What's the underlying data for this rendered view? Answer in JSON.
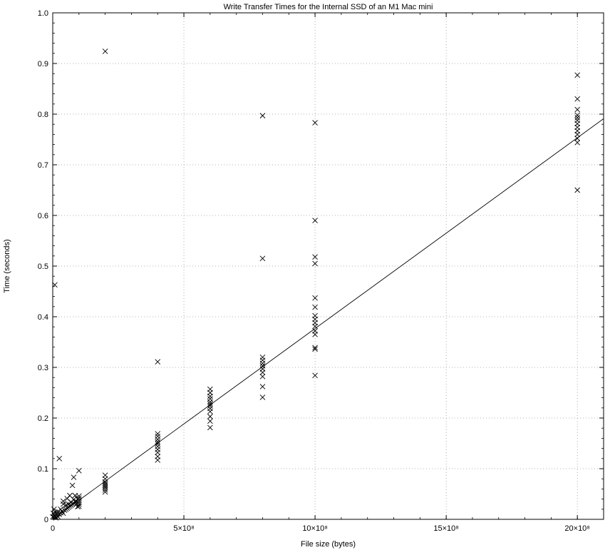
{
  "chart_data": {
    "type": "scatter",
    "title": "Write Transfer Times for the Internal SSD of an M1 Mac mini",
    "xlabel": "File size (bytes)",
    "ylabel": "Time (seconds)",
    "xlim": [
      0,
      2100000000
    ],
    "ylim": [
      0,
      1.0
    ],
    "grid": true,
    "x_ticks": [
      {
        "value": 0,
        "label": "0"
      },
      {
        "value": 500000000,
        "label": "5×10⁸"
      },
      {
        "value": 1000000000,
        "label": "10×10⁸"
      },
      {
        "value": 1500000000,
        "label": "15×10⁸"
      },
      {
        "value": 2000000000,
        "label": "20×10⁸"
      }
    ],
    "y_ticks": [
      {
        "value": 0,
        "label": "0"
      },
      {
        "value": 0.1,
        "label": "0.1"
      },
      {
        "value": 0.2,
        "label": "0.2"
      },
      {
        "value": 0.3,
        "label": "0.3"
      },
      {
        "value": 0.4,
        "label": "0.4"
      },
      {
        "value": 0.5,
        "label": "0.5"
      },
      {
        "value": 0.6,
        "label": "0.6"
      },
      {
        "value": 0.7,
        "label": "0.7"
      },
      {
        "value": 0.8,
        "label": "0.8"
      },
      {
        "value": 0.9,
        "label": "0.9"
      },
      {
        "value": 1.0,
        "label": "1.0"
      }
    ],
    "marker": "x",
    "points": [
      {
        "x": 0,
        "y": 0.005
      },
      {
        "x": 2000000,
        "y": 0.012
      },
      {
        "x": 4000000,
        "y": 0.004
      },
      {
        "x": 5000000,
        "y": 0.02
      },
      {
        "x": 6000000,
        "y": 0.008
      },
      {
        "x": 8000000,
        "y": 0.463
      },
      {
        "x": 10000000,
        "y": 0.006
      },
      {
        "x": 10000000,
        "y": 0.014
      },
      {
        "x": 12000000,
        "y": 0.003
      },
      {
        "x": 15000000,
        "y": 0.009
      },
      {
        "x": 18000000,
        "y": 0.011
      },
      {
        "x": 20000000,
        "y": 0.005
      },
      {
        "x": 20000000,
        "y": 0.015
      },
      {
        "x": 25000000,
        "y": 0.12
      },
      {
        "x": 25000000,
        "y": 0.01
      },
      {
        "x": 30000000,
        "y": 0.013
      },
      {
        "x": 30000000,
        "y": 0.02
      },
      {
        "x": 35000000,
        "y": 0.016
      },
      {
        "x": 40000000,
        "y": 0.012
      },
      {
        "x": 40000000,
        "y": 0.03
      },
      {
        "x": 40000000,
        "y": 0.036
      },
      {
        "x": 45000000,
        "y": 0.018
      },
      {
        "x": 50000000,
        "y": 0.02
      },
      {
        "x": 50000000,
        "y": 0.028
      },
      {
        "x": 55000000,
        "y": 0.022
      },
      {
        "x": 55000000,
        "y": 0.041
      },
      {
        "x": 60000000,
        "y": 0.024
      },
      {
        "x": 60000000,
        "y": 0.03
      },
      {
        "x": 65000000,
        "y": 0.026
      },
      {
        "x": 65000000,
        "y": 0.047
      },
      {
        "x": 70000000,
        "y": 0.028
      },
      {
        "x": 70000000,
        "y": 0.034
      },
      {
        "x": 75000000,
        "y": 0.03
      },
      {
        "x": 75000000,
        "y": 0.067
      },
      {
        "x": 80000000,
        "y": 0.032
      },
      {
        "x": 80000000,
        "y": 0.039
      },
      {
        "x": 80000000,
        "y": 0.083
      },
      {
        "x": 85000000,
        "y": 0.035
      },
      {
        "x": 85000000,
        "y": 0.047
      },
      {
        "x": 90000000,
        "y": 0.036
      },
      {
        "x": 90000000,
        "y": 0.03
      },
      {
        "x": 95000000,
        "y": 0.04
      },
      {
        "x": 95000000,
        "y": 0.025
      },
      {
        "x": 100000000,
        "y": 0.026
      },
      {
        "x": 100000000,
        "y": 0.03
      },
      {
        "x": 100000000,
        "y": 0.034
      },
      {
        "x": 100000000,
        "y": 0.038
      },
      {
        "x": 100000000,
        "y": 0.042
      },
      {
        "x": 100000000,
        "y": 0.046
      },
      {
        "x": 100000000,
        "y": 0.096
      },
      {
        "x": 200000000,
        "y": 0.054
      },
      {
        "x": 200000000,
        "y": 0.058
      },
      {
        "x": 200000000,
        "y": 0.062
      },
      {
        "x": 200000000,
        "y": 0.065
      },
      {
        "x": 200000000,
        "y": 0.068
      },
      {
        "x": 200000000,
        "y": 0.071
      },
      {
        "x": 200000000,
        "y": 0.074
      },
      {
        "x": 200000000,
        "y": 0.08
      },
      {
        "x": 200000000,
        "y": 0.087
      },
      {
        "x": 200000000,
        "y": 0.924
      },
      {
        "x": 400000000,
        "y": 0.117
      },
      {
        "x": 400000000,
        "y": 0.124
      },
      {
        "x": 400000000,
        "y": 0.132
      },
      {
        "x": 400000000,
        "y": 0.138
      },
      {
        "x": 400000000,
        "y": 0.144
      },
      {
        "x": 400000000,
        "y": 0.149
      },
      {
        "x": 400000000,
        "y": 0.153
      },
      {
        "x": 400000000,
        "y": 0.158
      },
      {
        "x": 400000000,
        "y": 0.164
      },
      {
        "x": 400000000,
        "y": 0.169
      },
      {
        "x": 400000000,
        "y": 0.311
      },
      {
        "x": 600000000,
        "y": 0.181
      },
      {
        "x": 600000000,
        "y": 0.194
      },
      {
        "x": 600000000,
        "y": 0.203
      },
      {
        "x": 600000000,
        "y": 0.213
      },
      {
        "x": 600000000,
        "y": 0.219
      },
      {
        "x": 600000000,
        "y": 0.224
      },
      {
        "x": 600000000,
        "y": 0.228
      },
      {
        "x": 600000000,
        "y": 0.232
      },
      {
        "x": 600000000,
        "y": 0.238
      },
      {
        "x": 600000000,
        "y": 0.243
      },
      {
        "x": 600000000,
        "y": 0.25
      },
      {
        "x": 600000000,
        "y": 0.257
      },
      {
        "x": 800000000,
        "y": 0.241
      },
      {
        "x": 800000000,
        "y": 0.262
      },
      {
        "x": 800000000,
        "y": 0.282
      },
      {
        "x": 800000000,
        "y": 0.29
      },
      {
        "x": 800000000,
        "y": 0.297
      },
      {
        "x": 800000000,
        "y": 0.303
      },
      {
        "x": 800000000,
        "y": 0.308
      },
      {
        "x": 800000000,
        "y": 0.314
      },
      {
        "x": 800000000,
        "y": 0.32
      },
      {
        "x": 800000000,
        "y": 0.515
      },
      {
        "x": 800000000,
        "y": 0.797
      },
      {
        "x": 1000000000,
        "y": 0.284
      },
      {
        "x": 1000000000,
        "y": 0.336
      },
      {
        "x": 1000000000,
        "y": 0.339
      },
      {
        "x": 1000000000,
        "y": 0.365
      },
      {
        "x": 1000000000,
        "y": 0.372
      },
      {
        "x": 1000000000,
        "y": 0.381
      },
      {
        "x": 1000000000,
        "y": 0.388
      },
      {
        "x": 1000000000,
        "y": 0.395
      },
      {
        "x": 1000000000,
        "y": 0.402
      },
      {
        "x": 1000000000,
        "y": 0.419
      },
      {
        "x": 1000000000,
        "y": 0.437
      },
      {
        "x": 1000000000,
        "y": 0.505
      },
      {
        "x": 1000000000,
        "y": 0.518
      },
      {
        "x": 1000000000,
        "y": 0.59
      },
      {
        "x": 1000000000,
        "y": 0.783
      },
      {
        "x": 2000000000,
        "y": 0.65
      },
      {
        "x": 2000000000,
        "y": 0.744
      },
      {
        "x": 2000000000,
        "y": 0.752
      },
      {
        "x": 2000000000,
        "y": 0.76
      },
      {
        "x": 2000000000,
        "y": 0.767
      },
      {
        "x": 2000000000,
        "y": 0.774
      },
      {
        "x": 2000000000,
        "y": 0.781
      },
      {
        "x": 2000000000,
        "y": 0.788
      },
      {
        "x": 2000000000,
        "y": 0.793
      },
      {
        "x": 2000000000,
        "y": 0.798
      },
      {
        "x": 2000000000,
        "y": 0.809
      },
      {
        "x": 2000000000,
        "y": 0.83
      },
      {
        "x": 2000000000,
        "y": 0.877
      }
    ],
    "fit_line": {
      "type": "linear",
      "x": [
        0,
        2100000000
      ],
      "y": [
        0,
        0.791
      ]
    }
  }
}
